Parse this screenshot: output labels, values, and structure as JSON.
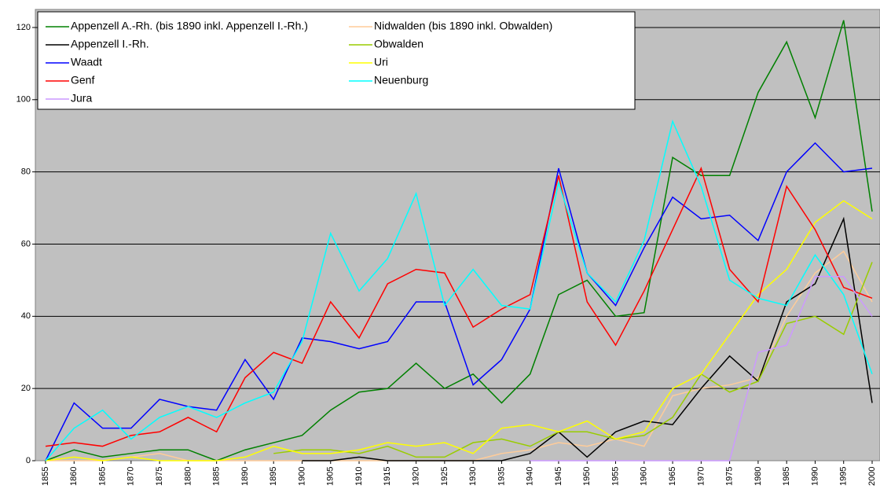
{
  "chart_data": {
    "type": "line",
    "categories": [
      "1855",
      "1860",
      "1865",
      "1870",
      "1875",
      "1880",
      "1885",
      "1890",
      "1895",
      "1900",
      "1905",
      "1910",
      "1915",
      "1920",
      "1925",
      "1930",
      "1935",
      "1940",
      "1945",
      "1950",
      "1955",
      "1960",
      "1965",
      "1970",
      "1975",
      "1980",
      "1985",
      "1990",
      "1995",
      "2000"
    ],
    "series": [
      {
        "name": "Appenzell A.-Rh. (bis 1890 inkl. Appenzell I.-Rh.)",
        "color": "#008000",
        "values": [
          0,
          3,
          1,
          2,
          3,
          3,
          0,
          3,
          5,
          7,
          14,
          19,
          20,
          27,
          20,
          24,
          16,
          24,
          46,
          50,
          40,
          41,
          84,
          79,
          79,
          102,
          116,
          95,
          122,
          69
        ]
      },
      {
        "name": "Nidwalden (bis 1890 inkl. Obwalden)",
        "color": "#ffcc99",
        "values": [
          0,
          0,
          0,
          1,
          2,
          0,
          0,
          0,
          0,
          0,
          0,
          0,
          0,
          0,
          0,
          0,
          2,
          3,
          5,
          4,
          6,
          4,
          18,
          20,
          21,
          23,
          40,
          52,
          58,
          44
        ]
      },
      {
        "name": "Appenzell I.-Rh.",
        "color": "#000000",
        "values": [
          null,
          null,
          null,
          null,
          null,
          null,
          null,
          null,
          null,
          0,
          0,
          1,
          0,
          0,
          0,
          0,
          0,
          2,
          8,
          1,
          8,
          11,
          10,
          20,
          29,
          22,
          44,
          49,
          67,
          16
        ]
      },
      {
        "name": "Obwalden",
        "color": "#99cc00",
        "values": [
          null,
          null,
          null,
          null,
          null,
          null,
          null,
          null,
          2,
          3,
          3,
          2,
          4,
          1,
          1,
          5,
          6,
          4,
          8,
          8,
          6,
          7,
          12,
          24,
          19,
          22,
          38,
          40,
          35,
          55
        ]
      },
      {
        "name": "Waadt",
        "color": "#0000ff",
        "values": [
          0,
          16,
          9,
          9,
          17,
          15,
          14,
          28,
          17,
          34,
          33,
          31,
          33,
          44,
          44,
          21,
          28,
          42,
          81,
          52,
          43,
          59,
          73,
          67,
          68,
          61,
          80,
          88,
          80,
          81
        ]
      },
      {
        "name": "Uri",
        "color": "#ffff00",
        "values": [
          0,
          1,
          0,
          1,
          0,
          0,
          0,
          1,
          4,
          2,
          2,
          3,
          5,
          4,
          5,
          2,
          9,
          10,
          8,
          11,
          6,
          8,
          20,
          24,
          35,
          46,
          53,
          66,
          72,
          67
        ]
      },
      {
        "name": "Genf",
        "color": "#ff0000",
        "values": [
          4,
          5,
          4,
          7,
          8,
          12,
          8,
          23,
          30,
          27,
          44,
          34,
          49,
          53,
          52,
          37,
          42,
          46,
          79,
          44,
          32,
          47,
          64,
          81,
          53,
          44,
          76,
          64,
          48,
          45
        ]
      },
      {
        "name": "Neuenburg",
        "color": "#00ffff",
        "values": [
          0,
          9,
          14,
          6,
          12,
          15,
          12,
          16,
          19,
          33,
          63,
          47,
          56,
          74,
          43,
          53,
          43,
          42,
          77,
          52,
          44,
          61,
          94,
          76,
          50,
          45,
          43,
          57,
          46,
          24
        ]
      },
      {
        "name": "Jura",
        "color": "#cc99ff",
        "values": [
          null,
          null,
          null,
          null,
          null,
          null,
          null,
          null,
          null,
          null,
          null,
          null,
          null,
          null,
          null,
          null,
          null,
          0,
          0,
          0,
          0,
          0,
          0,
          0,
          0,
          30,
          32,
          51,
          51,
          40
        ]
      }
    ],
    "ylim": [
      0,
      125
    ],
    "yticks": [
      0,
      20,
      40,
      60,
      80,
      100,
      120
    ],
    "grid": true,
    "legend": "upper left"
  }
}
